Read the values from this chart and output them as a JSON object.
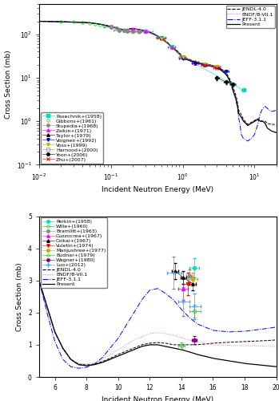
{
  "top_panel": {
    "xlim": [
      0.01,
      20
    ],
    "ylim": [
      0.1,
      500
    ],
    "xlabel": "Incident Neutron Energy (MeV)",
    "ylabel": "Cross Section (mb)"
  },
  "bottom_panel": {
    "xlim": [
      5,
      20
    ],
    "ylim": [
      0,
      5
    ],
    "xlabel": "Incident Neutron Energy (MeV)",
    "ylabel": "Cross Section (mb)"
  },
  "colors": {
    "JENDL": "#000000",
    "ENDF": "#ff69b4",
    "JEFF": "#0000ff",
    "Present": "#000000",
    "Pasechnik": "#00ddbb",
    "Gibbons": "#00cc00",
    "Stupedia": "#888888",
    "Zaikin": "#ff00ff",
    "Taylor": "#000000",
    "Voigneir": "#0000bb",
    "Voss": "#ccaa00",
    "Harnood": "#888888",
    "Yoon": "#000000",
    "Zhu": "#ff0000",
    "Perkin": "#00ddbb",
    "Wille": "#00cc00",
    "Bramlitt": "#888888",
    "Cuzzocrea": "#ff00ff",
    "Csikai": "#000000",
    "Vuletin": "#ff0000",
    "Manjushree": "#ccaa00",
    "Budnar": "#00cc00",
    "Wagner": "#800080",
    "Luo": "#4499ff"
  }
}
